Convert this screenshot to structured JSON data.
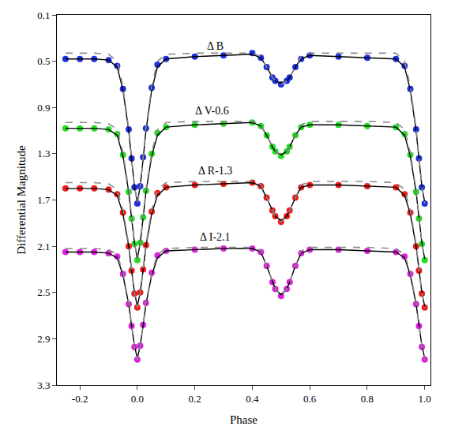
{
  "chart_data": {
    "type": "scatter",
    "x_label": "Phase",
    "y_label": "Differential Magnitude",
    "xlim": [
      -0.28,
      1.02
    ],
    "ylim": [
      3.3,
      0.1
    ],
    "xticks": [
      -0.2,
      {
        "value": 0,
        "label": "0.0"
      },
      0.2,
      0.4,
      0.6,
      0.8,
      {
        "value": 1,
        "label": "1.0"
      }
    ],
    "yticks": [
      0.1,
      0.5,
      0.9,
      1.3,
      1.7,
      2.1,
      2.5,
      2.9,
      3.3
    ],
    "grid": false,
    "x": [
      -0.25,
      -0.2,
      -0.15,
      -0.1,
      -0.07,
      -0.05,
      -0.03,
      -0.02,
      -0.01,
      0,
      0.01,
      0.02,
      0.03,
      0.05,
      0.07,
      0.1,
      0.2,
      0.3,
      0.4,
      0.43,
      0.45,
      0.47,
      0.48,
      0.5,
      0.52,
      0.53,
      0.55,
      0.57,
      0.6,
      0.7,
      0.8,
      0.9,
      0.93,
      0.95,
      0.97,
      0.98,
      0.99,
      1.0
    ],
    "series": [
      {
        "type": "scatter",
        "marker": "circle",
        "color": "#1e2fe0",
        "values": [
          0.48,
          0.48,
          0.48,
          0.49,
          0.54,
          0.74,
          1.09,
          1.34,
          1.59,
          1.73,
          1.58,
          1.33,
          1.08,
          0.73,
          0.53,
          0.48,
          0.46,
          0.45,
          0.43,
          0.47,
          0.55,
          0.64,
          0.67,
          0.7,
          0.67,
          0.64,
          0.55,
          0.48,
          0.45,
          0.46,
          0.47,
          0.48,
          0.54,
          0.74,
          1.09,
          1.34,
          1.59,
          1.73
        ]
      },
      {
        "type": "scatter",
        "marker": "circle",
        "color": "#22dd22",
        "values": [
          1.08,
          1.08,
          1.08,
          1.09,
          1.13,
          1.31,
          1.63,
          1.86,
          2.08,
          2.22,
          2.07,
          1.85,
          1.62,
          1.3,
          1.12,
          1.07,
          1.05,
          1.04,
          1.03,
          1.06,
          1.14,
          1.24,
          1.28,
          1.32,
          1.28,
          1.24,
          1.14,
          1.07,
          1.05,
          1.05,
          1.06,
          1.07,
          1.13,
          1.31,
          1.63,
          1.86,
          2.08,
          2.22
        ]
      },
      {
        "type": "scatter",
        "marker": "circle",
        "color": "#ee1c1c",
        "values": [
          1.6,
          1.6,
          1.6,
          1.61,
          1.65,
          1.81,
          2.1,
          2.31,
          2.51,
          2.63,
          2.5,
          2.3,
          2.09,
          1.8,
          1.64,
          1.59,
          1.57,
          1.56,
          1.55,
          1.58,
          1.68,
          1.79,
          1.84,
          1.89,
          1.84,
          1.79,
          1.68,
          1.59,
          1.57,
          1.57,
          1.58,
          1.59,
          1.65,
          1.81,
          2.1,
          2.31,
          2.51,
          2.63
        ]
      },
      {
        "type": "scatter",
        "marker": "circle",
        "color": "#dd22dd",
        "values": [
          2.15,
          2.15,
          2.15,
          2.16,
          2.19,
          2.34,
          2.6,
          2.79,
          2.97,
          3.08,
          2.96,
          2.78,
          2.59,
          2.33,
          2.18,
          2.14,
          2.13,
          2.12,
          2.12,
          2.15,
          2.27,
          2.41,
          2.47,
          2.53,
          2.47,
          2.41,
          2.27,
          2.16,
          2.13,
          2.13,
          2.14,
          2.15,
          2.19,
          2.34,
          2.6,
          2.79,
          2.97,
          3.08
        ]
      },
      {
        "type": "line",
        "line_style": "solid",
        "color": "#000000",
        "values": [
          0.48,
          0.48,
          0.48,
          0.49,
          0.55,
          0.75,
          1.1,
          1.35,
          1.58,
          1.72,
          1.58,
          1.35,
          1.1,
          0.75,
          0.55,
          0.48,
          0.46,
          0.45,
          0.44,
          0.47,
          0.55,
          0.64,
          0.67,
          0.69,
          0.67,
          0.64,
          0.55,
          0.48,
          0.45,
          0.46,
          0.47,
          0.48,
          0.55,
          0.75,
          1.1,
          1.35,
          1.58,
          1.72
        ]
      },
      {
        "type": "line",
        "line_style": "solid",
        "color": "#000000",
        "values": [
          1.08,
          1.08,
          1.08,
          1.09,
          1.14,
          1.32,
          1.63,
          1.86,
          2.07,
          2.21,
          2.07,
          1.86,
          1.63,
          1.32,
          1.14,
          1.07,
          1.05,
          1.04,
          1.03,
          1.06,
          1.14,
          1.24,
          1.28,
          1.31,
          1.28,
          1.24,
          1.14,
          1.07,
          1.05,
          1.05,
          1.06,
          1.07,
          1.14,
          1.32,
          1.63,
          1.86,
          2.07,
          2.21
        ]
      },
      {
        "type": "line",
        "line_style": "solid",
        "color": "#000000",
        "values": [
          1.6,
          1.6,
          1.6,
          1.61,
          1.66,
          1.82,
          2.1,
          2.31,
          2.5,
          2.62,
          2.5,
          2.31,
          2.1,
          1.82,
          1.66,
          1.59,
          1.57,
          1.56,
          1.55,
          1.58,
          1.68,
          1.79,
          1.84,
          1.88,
          1.84,
          1.79,
          1.68,
          1.59,
          1.57,
          1.57,
          1.58,
          1.59,
          1.66,
          1.82,
          2.1,
          2.31,
          2.5,
          2.62
        ]
      },
      {
        "type": "line",
        "line_style": "solid",
        "color": "#000000",
        "values": [
          2.15,
          2.15,
          2.15,
          2.16,
          2.2,
          2.35,
          2.6,
          2.79,
          2.96,
          3.07,
          2.96,
          2.79,
          2.6,
          2.35,
          2.2,
          2.14,
          2.13,
          2.12,
          2.12,
          2.15,
          2.27,
          2.41,
          2.47,
          2.52,
          2.47,
          2.41,
          2.27,
          2.16,
          2.13,
          2.13,
          2.14,
          2.15,
          2.2,
          2.35,
          2.6,
          2.79,
          2.96,
          3.07
        ]
      },
      {
        "type": "line",
        "line_style": "dash",
        "color": "#8c8c8c",
        "values": [
          0.43,
          0.43,
          0.43,
          0.44,
          0.5,
          0.72,
          1.08,
          1.34,
          1.58,
          1.73,
          1.58,
          1.34,
          1.08,
          0.72,
          0.5,
          0.44,
          0.43,
          0.43,
          0.43,
          0.46,
          0.55,
          0.64,
          0.67,
          0.7,
          0.67,
          0.64,
          0.55,
          0.46,
          0.43,
          0.43,
          0.43,
          0.43,
          0.5,
          0.72,
          1.08,
          1.34,
          1.58,
          1.73
        ]
      },
      {
        "type": "line",
        "line_style": "dash",
        "color": "#8c8c8c",
        "values": [
          1.03,
          1.03,
          1.03,
          1.04,
          1.09,
          1.29,
          1.61,
          1.85,
          2.07,
          2.22,
          2.07,
          1.85,
          1.61,
          1.29,
          1.09,
          1.03,
          1.02,
          1.02,
          1.02,
          1.05,
          1.14,
          1.24,
          1.28,
          1.32,
          1.28,
          1.24,
          1.14,
          1.05,
          1.02,
          1.02,
          1.02,
          1.03,
          1.09,
          1.29,
          1.61,
          1.85,
          2.07,
          2.22
        ]
      },
      {
        "type": "line",
        "line_style": "dash",
        "color": "#8c8c8c",
        "values": [
          1.55,
          1.55,
          1.55,
          1.56,
          1.61,
          1.79,
          2.08,
          2.3,
          2.5,
          2.63,
          2.5,
          2.3,
          2.08,
          1.79,
          1.61,
          1.55,
          1.54,
          1.54,
          1.54,
          1.57,
          1.68,
          1.79,
          1.84,
          1.89,
          1.84,
          1.79,
          1.68,
          1.57,
          1.54,
          1.54,
          1.54,
          1.55,
          1.61,
          1.79,
          2.08,
          2.3,
          2.5,
          2.63
        ]
      },
      {
        "type": "line",
        "line_style": "dash",
        "color": "#8c8c8c",
        "values": [
          2.12,
          2.12,
          2.12,
          2.13,
          2.17,
          2.33,
          2.59,
          2.78,
          2.96,
          3.08,
          2.96,
          2.78,
          2.59,
          2.33,
          2.17,
          2.12,
          2.11,
          2.11,
          2.11,
          2.14,
          2.27,
          2.41,
          2.47,
          2.53,
          2.47,
          2.41,
          2.27,
          2.14,
          2.11,
          2.11,
          2.11,
          2.12,
          2.17,
          2.33,
          2.59,
          2.78,
          2.96,
          3.08
        ]
      }
    ],
    "annotations": [
      {
        "text": "Δ B",
        "x": 0.27,
        "y": 0.37
      },
      {
        "text": "Δ V-0.6",
        "x": 0.26,
        "y": 0.93
      },
      {
        "text": "Δ R-1.3",
        "x": 0.27,
        "y": 1.45
      },
      {
        "text": "Δ I-2.1",
        "x": 0.27,
        "y": 2.02
      }
    ]
  }
}
